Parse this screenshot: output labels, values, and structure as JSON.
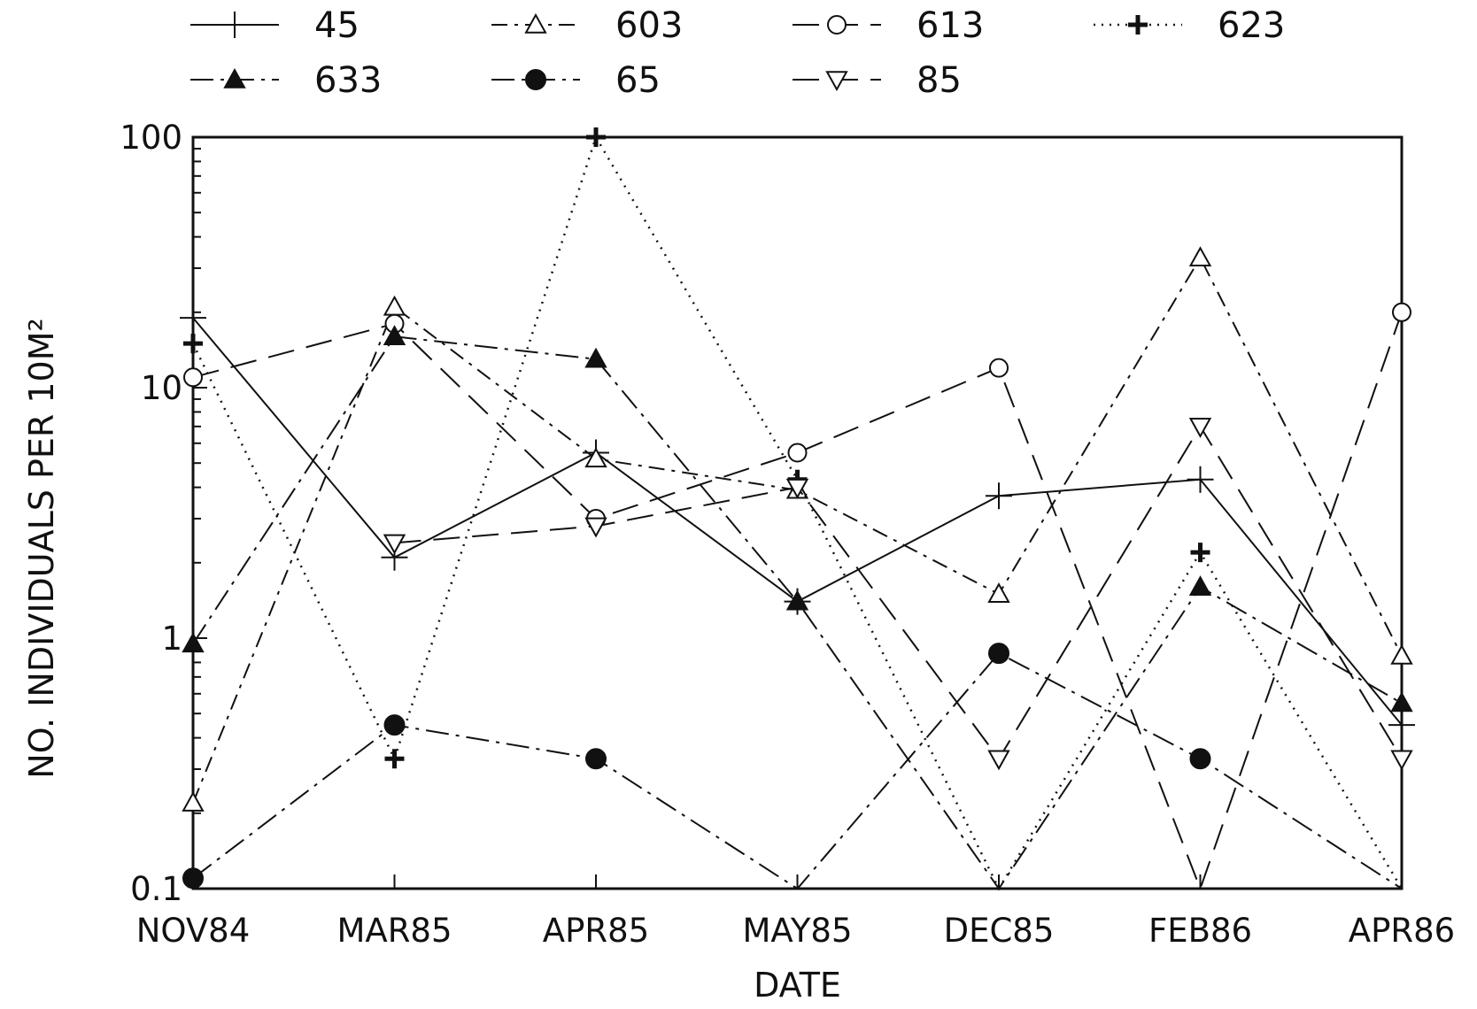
{
  "chart_data": {
    "type": "line",
    "title": "",
    "xlabel": "DATE",
    "ylabel": "NO. INDIVIDUALS PER 10M²",
    "yscale": "log",
    "ylim": [
      0.1,
      100
    ],
    "yticks": [
      {
        "value": 0.1,
        "label": "0.1"
      },
      {
        "value": 1,
        "label": "1"
      },
      {
        "value": 10,
        "label": "10"
      },
      {
        "value": 100,
        "label": "100"
      }
    ],
    "categories": [
      "NOV84",
      "MAR85",
      "APR85",
      "MAY85",
      "DEC85",
      "FEB86",
      "APR86"
    ],
    "grid": false,
    "legend_position": "top",
    "series": [
      {
        "name": "45",
        "marker": "plus",
        "dash": "solid",
        "values": [
          19,
          2.1,
          5.5,
          1.4,
          3.7,
          4.3,
          0.45
        ]
      },
      {
        "name": "603",
        "marker": "triangle-open",
        "dash": "dash-dot",
        "values": [
          0.22,
          21,
          5.2,
          3.9,
          1.5,
          33,
          0.85
        ]
      },
      {
        "name": "613",
        "marker": "circle-open",
        "dash": "long-dash",
        "values": [
          11,
          18,
          3.0,
          5.5,
          12,
          0.1,
          20
        ]
      },
      {
        "name": "623",
        "marker": "plus-bold",
        "dash": "dotted",
        "values": [
          15,
          0.33,
          100,
          4.3,
          0.1,
          2.2,
          0.1
        ]
      },
      {
        "name": "633",
        "marker": "triangle-filled",
        "dash": "long-dash-dot",
        "values": [
          0.95,
          16,
          13,
          1.4,
          0.1,
          1.6,
          0.55
        ]
      },
      {
        "name": "65",
        "marker": "circle-filled",
        "dash": "long-dash-dot",
        "values": [
          0.11,
          0.45,
          0.33,
          0.1,
          0.87,
          0.33,
          0.1
        ]
      },
      {
        "name": "85",
        "marker": "triangle-down-open",
        "dash": "long-dash",
        "values": [
          null,
          2.4,
          2.8,
          4.0,
          0.33,
          7.0,
          0.33
        ]
      }
    ]
  }
}
